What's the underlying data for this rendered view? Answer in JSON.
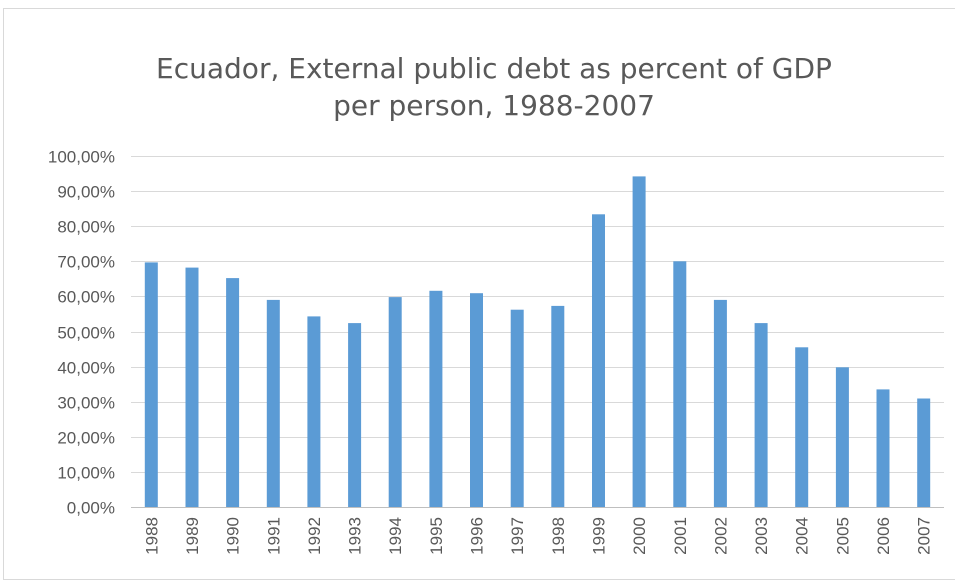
{
  "chart_data": {
    "type": "bar",
    "title_lines": [
      "Ecuador, External public debt as percent of GDP",
      "per person, 1988-2007"
    ],
    "categories": [
      "1988",
      "1989",
      "1990",
      "1991",
      "1992",
      "1993",
      "1994",
      "1995",
      "1996",
      "1997",
      "1998",
      "1999",
      "2000",
      "2001",
      "2002",
      "2003",
      "2004",
      "2005",
      "2006",
      "2007"
    ],
    "values": [
      69.7,
      68.2,
      65.2,
      59.0,
      54.3,
      52.4,
      59.8,
      61.6,
      60.9,
      56.2,
      57.3,
      83.4,
      94.2,
      70.0,
      59.0,
      52.4,
      45.5,
      39.8,
      33.5,
      30.9
    ],
    "ylim": [
      0,
      100
    ],
    "y_ticks": [
      0,
      10,
      20,
      30,
      40,
      50,
      60,
      70,
      80,
      90,
      100
    ],
    "y_tick_labels": [
      "0,00%",
      "10,00%",
      "20,00%",
      "30,00%",
      "40,00%",
      "50,00%",
      "60,00%",
      "70,00%",
      "80,00%",
      "90,00%",
      "100,00%"
    ],
    "xlabel": "",
    "ylabel": "",
    "grid": true,
    "legend": "none",
    "bar_color": "#5B9BD5"
  }
}
